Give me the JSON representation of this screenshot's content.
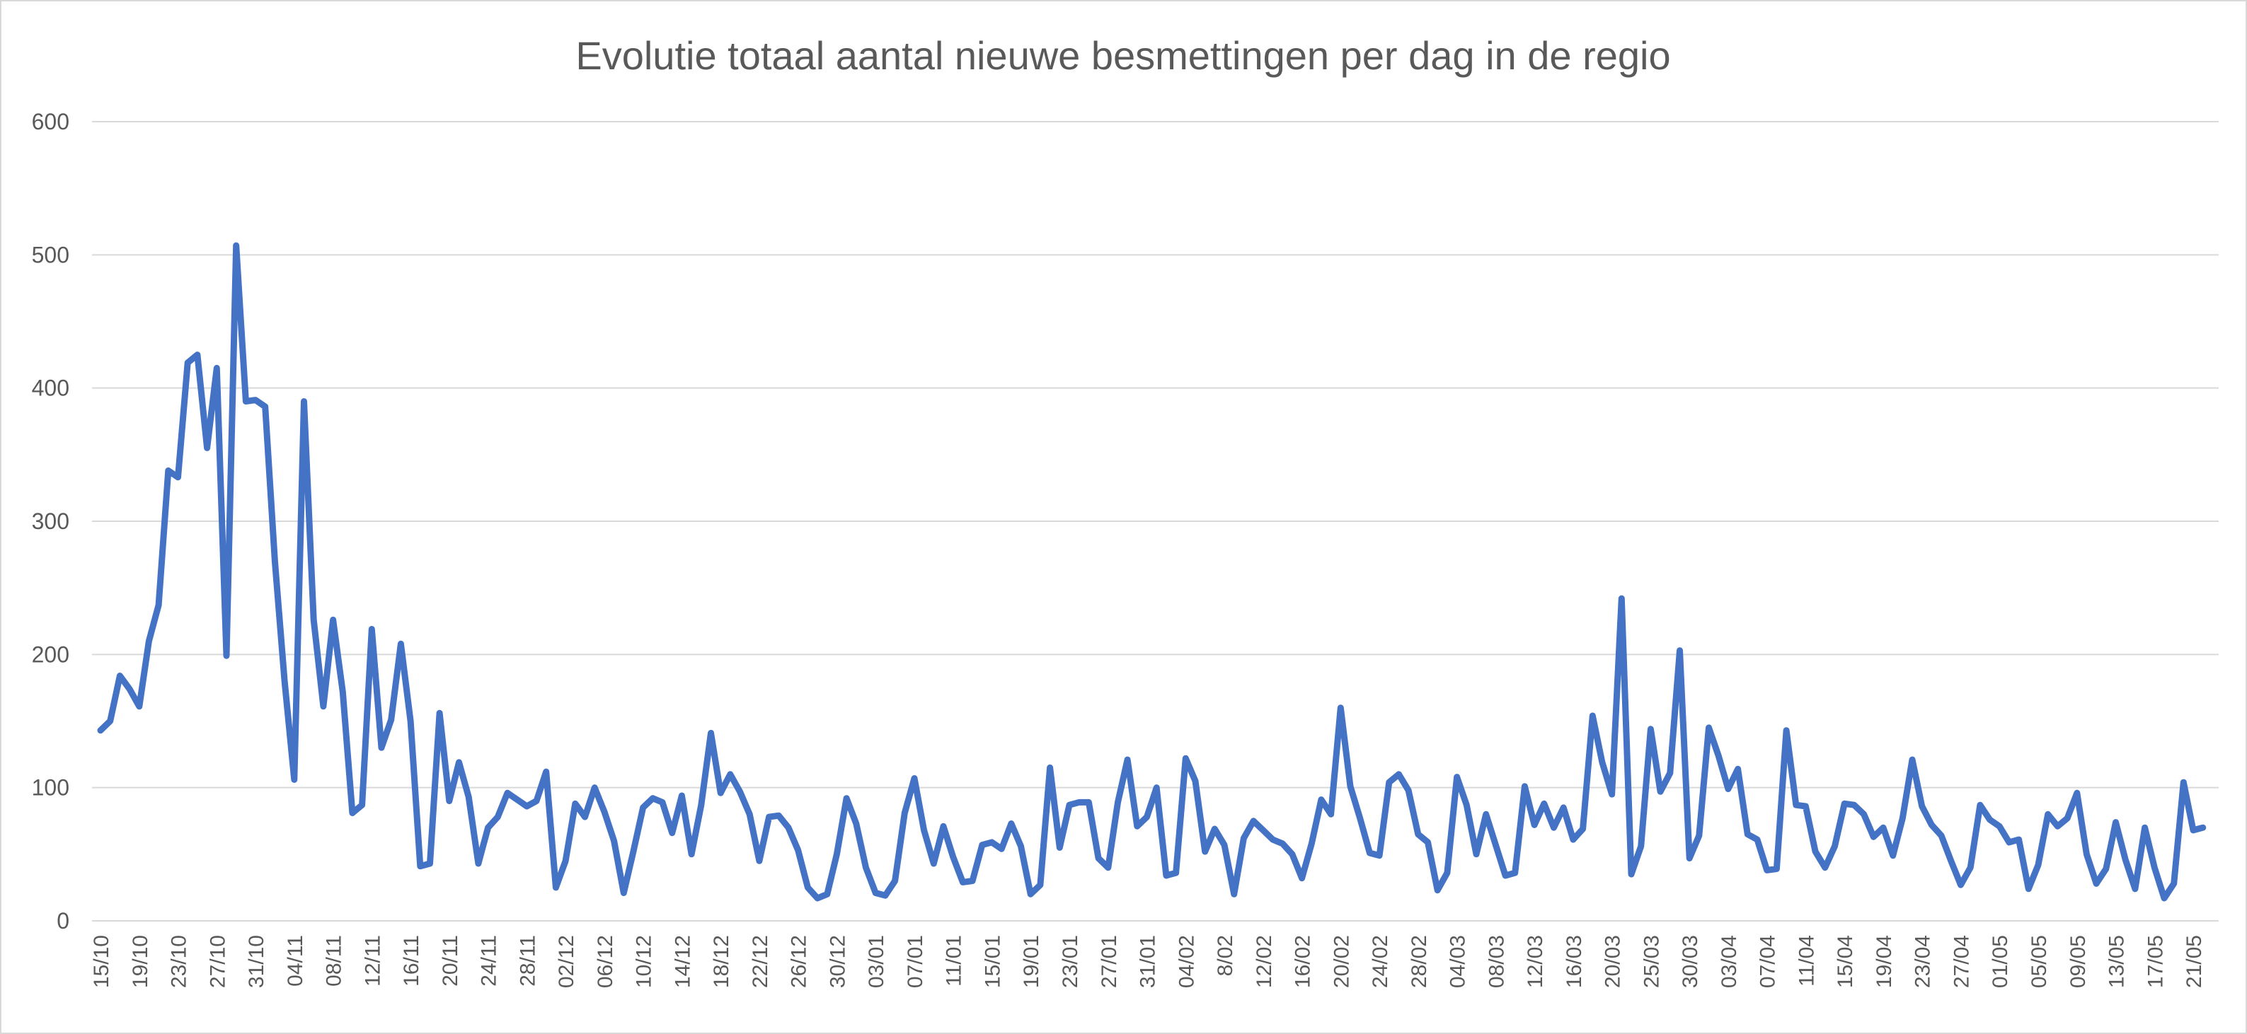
{
  "chart_data": {
    "type": "line",
    "title": "Evolutie totaal aantal nieuwe besmettingen per dag in de regio",
    "xlabel": "",
    "ylabel": "",
    "ylim": [
      0,
      600
    ],
    "yticks": [
      0,
      100,
      200,
      300,
      400,
      500,
      600
    ],
    "grid": true,
    "legend": "none",
    "color": "#4472C4",
    "x_tick_labels": [
      "15/10",
      "19/10",
      "23/10",
      "27/10",
      "31/10",
      "04/11",
      "08/11",
      "12/11",
      "16/11",
      "20/11",
      "24/11",
      "28/11",
      "02/12",
      "06/12",
      "10/12",
      "14/12",
      "18/12",
      "22/12",
      "26/12",
      "30/12",
      "03/01",
      "07/01",
      "11/01",
      "15/01",
      "19/01",
      "23/01",
      "27/01",
      "31/01",
      "04/02",
      "8/02",
      "12/02",
      "16/02",
      "20/02",
      "24/02",
      "28/02",
      "04/03",
      "08/03",
      "12/03",
      "16/03",
      "20/03",
      "25/03",
      "30/03",
      "03/04",
      "07/04",
      "11/04",
      "15/04",
      "19/04",
      "23/04",
      "27/04",
      "01/05",
      "05/05",
      "09/05",
      "13/05",
      "17/05",
      "21/05"
    ],
    "x_tick_every": 4,
    "values": [
      143,
      150,
      184,
      174,
      161,
      210,
      237,
      338,
      333,
      419,
      425,
      355,
      415,
      199,
      507,
      390,
      391,
      386,
      270,
      180,
      106,
      390,
      226,
      161,
      226,
      172,
      81,
      87,
      219,
      130,
      151,
      208,
      150,
      41,
      43,
      156,
      90,
      119,
      93,
      43,
      70,
      78,
      96,
      91,
      86,
      90,
      112,
      25,
      45,
      88,
      78,
      100,
      82,
      60,
      21,
      52,
      85,
      92,
      89,
      66,
      94,
      50,
      87,
      141,
      96,
      110,
      97,
      80,
      45,
      78,
      79,
      70,
      53,
      25,
      17,
      20,
      50,
      92,
      73,
      40,
      21,
      19,
      30,
      81,
      107,
      68,
      43,
      71,
      48,
      29,
      30,
      57,
      59,
      54,
      73,
      56,
      20,
      27,
      115,
      55,
      87,
      89,
      89,
      47,
      40,
      89,
      121,
      71,
      78,
      100,
      34,
      36,
      122,
      105,
      52,
      69,
      57,
      20,
      62,
      75,
      68,
      61,
      58,
      50,
      32,
      58,
      91,
      80,
      160,
      101,
      77,
      51,
      49,
      104,
      110,
      98,
      65,
      59,
      23,
      36,
      108,
      87,
      50,
      80,
      57,
      34,
      36,
      101,
      72,
      88,
      70,
      85,
      61,
      69,
      154,
      119,
      95,
      242,
      35,
      56,
      144,
      97,
      111,
      203,
      47,
      64,
      145,
      124,
      99,
      114,
      65,
      61,
      38,
      39,
      143,
      87,
      86,
      52,
      40,
      56,
      88,
      87,
      80,
      63,
      70,
      49,
      77,
      121,
      86,
      72,
      64,
      45,
      27,
      40,
      87,
      76,
      71,
      59,
      61,
      24,
      42,
      80,
      71,
      77,
      96,
      50,
      28,
      39,
      74,
      46,
      24,
      70,
      40,
      17,
      28,
      104,
      68,
      70
    ]
  }
}
